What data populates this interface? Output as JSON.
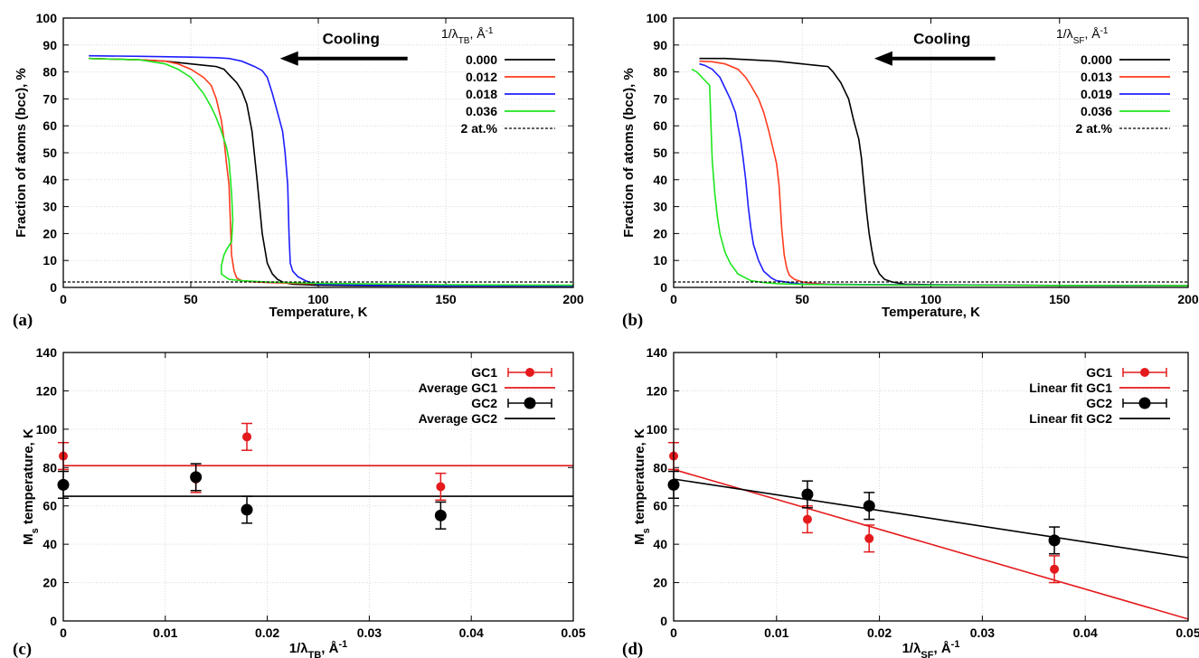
{
  "chart_data": [
    {
      "type": "line",
      "panel_label": "(a)",
      "xlabel": "Temperature, K",
      "ylabel": "Fraction of atoms (bcc), %",
      "xlim": [
        0,
        200
      ],
      "ylim": [
        0,
        100
      ],
      "xticks": [
        "0",
        "50",
        "100",
        "150",
        "200"
      ],
      "yticks": [
        "0",
        "10",
        "20",
        "30",
        "40",
        "50",
        "60",
        "70",
        "80",
        "90",
        "100"
      ],
      "grid": true,
      "legend_position": "top-right",
      "legend_title": "1/λTB, Å-1",
      "legend_title_parts": {
        "pre": "1/λ",
        "sub": "TB",
        "mid": ", Å",
        "sup": "-1"
      },
      "annotation": {
        "text": "Cooling",
        "arrow_from": [
          135,
          85
        ],
        "arrow_to": [
          85,
          85
        ]
      },
      "series": [
        {
          "name": "0.000",
          "color": "#000000",
          "style": "solid",
          "x": [
            10,
            30,
            40,
            50,
            55,
            60,
            63,
            66,
            68,
            70,
            72,
            74,
            76,
            78,
            80,
            82,
            84,
            86,
            88,
            90,
            95,
            100,
            120,
            150,
            180,
            200
          ],
          "y": [
            85,
            84.5,
            84,
            83,
            82.5,
            82,
            81,
            78,
            76,
            73,
            68,
            58,
            40,
            20,
            9,
            5,
            3,
            2,
            1.5,
            1.2,
            1,
            0.8,
            0.6,
            0.5,
            0.5,
            0.5
          ]
        },
        {
          "name": "0.012",
          "color": "#ff3c1e",
          "style": "solid",
          "x": [
            10,
            30,
            40,
            45,
            50,
            55,
            58,
            60,
            62,
            63,
            64,
            65,
            65.5,
            66,
            67,
            68,
            70,
            75,
            80,
            90,
            100,
            150,
            200
          ],
          "y": [
            85,
            84.5,
            84,
            83,
            81,
            78,
            75,
            70,
            62,
            55,
            46,
            38,
            25,
            12,
            6,
            3.5,
            2.5,
            2,
            1.8,
            1.5,
            1.3,
            0.8,
            0.6
          ]
        },
        {
          "name": "0.018",
          "color": "#1e1eff",
          "style": "solid",
          "x": [
            10,
            30,
            50,
            60,
            65,
            70,
            75,
            78,
            80,
            82,
            84,
            86,
            87,
            88,
            88.5,
            89,
            90,
            92,
            95,
            98,
            100,
            120,
            150,
            200
          ],
          "y": [
            86,
            85.8,
            85.5,
            85.3,
            85,
            84,
            82,
            80.5,
            78,
            72,
            65,
            58,
            50,
            38,
            20,
            9,
            6,
            4,
            2.5,
            1.5,
            1.2,
            0.8,
            0.6,
            0.5
          ]
        },
        {
          "name": "0.036",
          "color": "#1ee61e",
          "style": "solid",
          "x": [
            10,
            30,
            40,
            45,
            50,
            55,
            58,
            60,
            62,
            64,
            65,
            65.5,
            66,
            66.5,
            66,
            64,
            63,
            62,
            62,
            65,
            70,
            80,
            100,
            150,
            200
          ],
          "y": [
            85,
            84.5,
            83,
            81,
            78,
            72,
            67,
            63,
            58,
            52,
            47,
            41,
            35,
            25,
            17,
            14,
            12,
            8,
            5,
            3,
            2.5,
            2,
            1.5,
            1,
            0.8
          ]
        },
        {
          "name": "2 at.%",
          "color": "#000000",
          "style": "dashed",
          "x": [
            0,
            200
          ],
          "y": [
            2,
            2
          ]
        }
      ]
    },
    {
      "type": "line",
      "panel_label": "(b)",
      "xlabel": "Temperature, K",
      "ylabel": "Fraction of atoms (bcc), %",
      "xlim": [
        0,
        200
      ],
      "ylim": [
        0,
        100
      ],
      "xticks": [
        "0",
        "50",
        "100",
        "150",
        "200"
      ],
      "yticks": [
        "0",
        "10",
        "20",
        "30",
        "40",
        "50",
        "60",
        "70",
        "80",
        "90",
        "100"
      ],
      "grid": true,
      "legend_position": "top-right",
      "legend_title": "1/λSF, Å-1",
      "legend_title_parts": {
        "pre": "1/λ",
        "sub": "SF",
        "mid": ", Å",
        "sup": "-1"
      },
      "annotation": {
        "text": "Cooling",
        "arrow_from": [
          125,
          85
        ],
        "arrow_to": [
          78,
          85
        ]
      },
      "series": [
        {
          "name": "0.000",
          "color": "#000000",
          "style": "solid",
          "x": [
            10,
            20,
            30,
            40,
            50,
            55,
            60,
            62,
            65,
            68,
            70,
            72,
            73,
            74,
            75,
            76,
            77,
            78,
            80,
            82,
            85,
            90,
            100,
            150,
            200
          ],
          "y": [
            85,
            85,
            84.5,
            84,
            83,
            82.5,
            82,
            80,
            76,
            70,
            62,
            55,
            48,
            38,
            28,
            20,
            14,
            9,
            5,
            3,
            2,
            1.2,
            1,
            0.7,
            0.6
          ]
        },
        {
          "name": "0.013",
          "color": "#ff3c1e",
          "style": "solid",
          "x": [
            10,
            15,
            20,
            25,
            28,
            30,
            33,
            35,
            37,
            39,
            40,
            41,
            42,
            43,
            44,
            45,
            47,
            50,
            55,
            60,
            80,
            100,
            150,
            200
          ],
          "y": [
            84,
            83.8,
            83,
            81,
            78,
            75,
            70,
            65,
            58,
            50,
            46,
            38,
            22,
            12,
            7,
            4.5,
            3,
            2,
            1.5,
            1.2,
            1,
            0.9,
            0.7,
            0.6
          ]
        },
        {
          "name": "0.019",
          "color": "#1e1eff",
          "style": "solid",
          "x": [
            10,
            12,
            15,
            18,
            20,
            22,
            24,
            25,
            26,
            27,
            28,
            29,
            30,
            31,
            33,
            35,
            38,
            40,
            45,
            50,
            100,
            200
          ],
          "y": [
            83,
            82.5,
            81,
            78,
            74,
            70,
            65,
            60,
            55,
            48,
            40,
            30,
            22,
            16,
            10,
            6,
            3.5,
            2.5,
            1.8,
            1.2,
            0.9,
            0.6
          ]
        },
        {
          "name": "0.036",
          "color": "#1ee61e",
          "style": "solid",
          "x": [
            7,
            9,
            11,
            12,
            13,
            14,
            14.5,
            15,
            16,
            17,
            18,
            20,
            22,
            25,
            28,
            30,
            35,
            40,
            50,
            100,
            200
          ],
          "y": [
            81,
            80,
            78,
            77,
            76,
            75,
            60,
            47,
            35,
            26,
            20,
            13,
            9,
            5,
            3.5,
            2.5,
            1.8,
            1.4,
            1.1,
            0.8,
            0.6
          ]
        },
        {
          "name": "2 at.%",
          "color": "#000000",
          "style": "dashed",
          "x": [
            0,
            200
          ],
          "y": [
            2,
            2
          ]
        }
      ]
    },
    {
      "type": "scatter",
      "panel_label": "(c)",
      "xlabel": "1/λTB, Å-1",
      "xlabel_parts": {
        "pre": "1/λ",
        "sub": "TB",
        "mid": ", Å",
        "sup": "-1"
      },
      "ylabel": "Ms temperature, K",
      "ylabel_parts": {
        "pre": "M",
        "sub": "s",
        "post": " temperature, K"
      },
      "xlim": [
        0,
        0.05
      ],
      "ylim": [
        0,
        140
      ],
      "xticks": [
        "0",
        "0.01",
        "0.02",
        "0.03",
        "0.04",
        "0.05"
      ],
      "yticks": [
        "0",
        "20",
        "40",
        "60",
        "80",
        "100",
        "120",
        "140"
      ],
      "grid": true,
      "legend_position": "top-right",
      "series": [
        {
          "name": "GC1",
          "kind": "points",
          "color": "#e41a1c",
          "x": [
            0,
            0.013,
            0.018,
            0.037
          ],
          "y": [
            86,
            74,
            96,
            70
          ],
          "err": [
            7,
            7,
            7,
            7
          ]
        },
        {
          "name": "Average GC1",
          "kind": "line",
          "color": "#e41a1c",
          "x": [
            0,
            0.05
          ],
          "y": [
            81,
            81
          ]
        },
        {
          "name": "GC2",
          "kind": "points",
          "color": "#000000",
          "x": [
            0,
            0.013,
            0.018,
            0.037
          ],
          "y": [
            71,
            75,
            58,
            55
          ],
          "err": [
            7,
            7,
            7,
            7
          ]
        },
        {
          "name": "Average GC2",
          "kind": "line",
          "color": "#000000",
          "x": [
            0,
            0.05
          ],
          "y": [
            65,
            65
          ]
        }
      ]
    },
    {
      "type": "scatter",
      "panel_label": "(d)",
      "xlabel": "1/λSF, Å-1",
      "xlabel_parts": {
        "pre": "1/λ",
        "sub": "SF",
        "mid": ", Å",
        "sup": "-1"
      },
      "ylabel": "Ms temperature, K",
      "ylabel_parts": {
        "pre": "M",
        "sub": "s",
        "post": " temperature, K"
      },
      "xlim": [
        0,
        0.05
      ],
      "ylim": [
        0,
        140
      ],
      "xticks": [
        "0",
        "0.01",
        "0.02",
        "0.03",
        "0.04",
        "0.05"
      ],
      "yticks": [
        "0",
        "20",
        "40",
        "60",
        "80",
        "100",
        "120",
        "140"
      ],
      "grid": true,
      "legend_position": "top-right",
      "series": [
        {
          "name": "GC1",
          "kind": "points",
          "color": "#e41a1c",
          "x": [
            0,
            0.013,
            0.019,
            0.037
          ],
          "y": [
            86,
            53,
            43,
            27
          ],
          "err": [
            7,
            7,
            7,
            7
          ]
        },
        {
          "name": "Linear fit GC1",
          "kind": "line",
          "color": "#e41a1c",
          "x": [
            0,
            0.05
          ],
          "y": [
            79,
            1
          ]
        },
        {
          "name": "GC2",
          "kind": "points",
          "color": "#000000",
          "x": [
            0,
            0.013,
            0.019,
            0.037
          ],
          "y": [
            71,
            66,
            60,
            42
          ],
          "err": [
            7,
            7,
            7,
            7
          ]
        },
        {
          "name": "Linear fit GC2",
          "kind": "line",
          "color": "#000000",
          "x": [
            0,
            0.05
          ],
          "y": [
            74,
            33
          ]
        }
      ]
    }
  ]
}
